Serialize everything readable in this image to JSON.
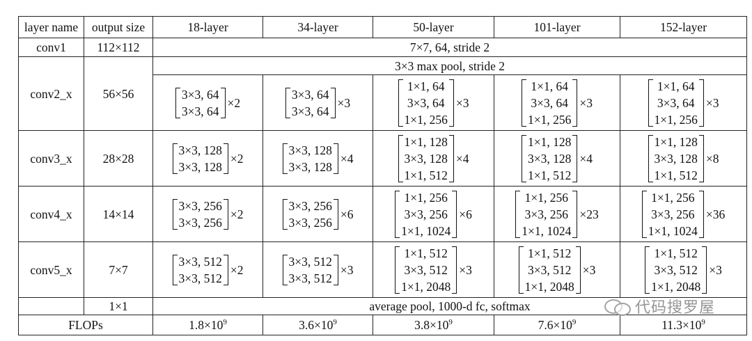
{
  "headers": [
    "layer name",
    "output size",
    "18-layer",
    "34-layer",
    "50-layer",
    "101-layer",
    "152-layer"
  ],
  "conv1": {
    "name": "conv1",
    "size": "112×112",
    "spec": "7×7, 64, stride 2"
  },
  "pool": "3×3 max pool, stride 2",
  "blocks": [
    {
      "name": "conv2_x",
      "size": "56×56",
      "cols": [
        {
          "lines": [
            "3×3, 64",
            "3×3, 64"
          ],
          "mult": "×2"
        },
        {
          "lines": [
            "3×3, 64",
            "3×3, 64"
          ],
          "mult": "×3"
        },
        {
          "lines": [
            "1×1, 64",
            "3×3, 64",
            "1×1, 256"
          ],
          "mult": "×3"
        },
        {
          "lines": [
            "1×1, 64",
            "3×3, 64",
            "1×1, 256"
          ],
          "mult": "×3"
        },
        {
          "lines": [
            "1×1, 64",
            "3×3, 64",
            "1×1, 256"
          ],
          "mult": "×3"
        }
      ]
    },
    {
      "name": "conv3_x",
      "size": "28×28",
      "cols": [
        {
          "lines": [
            "3×3, 128",
            "3×3, 128"
          ],
          "mult": "×2"
        },
        {
          "lines": [
            "3×3, 128",
            "3×3, 128"
          ],
          "mult": "×4"
        },
        {
          "lines": [
            "1×1, 128",
            "3×3, 128",
            "1×1, 512"
          ],
          "mult": "×4"
        },
        {
          "lines": [
            "1×1, 128",
            "3×3, 128",
            "1×1, 512"
          ],
          "mult": "×4"
        },
        {
          "lines": [
            "1×1, 128",
            "3×3, 128",
            "1×1, 512"
          ],
          "mult": "×8"
        }
      ]
    },
    {
      "name": "conv4_x",
      "size": "14×14",
      "cols": [
        {
          "lines": [
            "3×3, 256",
            "3×3, 256"
          ],
          "mult": "×2"
        },
        {
          "lines": [
            "3×3, 256",
            "3×3, 256"
          ],
          "mult": "×6"
        },
        {
          "lines": [
            "1×1, 256",
            "3×3, 256",
            "1×1, 1024"
          ],
          "mult": "×6"
        },
        {
          "lines": [
            "1×1, 256",
            "3×3, 256",
            "1×1, 1024"
          ],
          "mult": "×23"
        },
        {
          "lines": [
            "1×1, 256",
            "3×3, 256",
            "1×1, 1024"
          ],
          "mult": "×36"
        }
      ]
    },
    {
      "name": "conv5_x",
      "size": "7×7",
      "cols": [
        {
          "lines": [
            "3×3, 512",
            "3×3, 512"
          ],
          "mult": "×2"
        },
        {
          "lines": [
            "3×3, 512",
            "3×3, 512"
          ],
          "mult": "×3"
        },
        {
          "lines": [
            "1×1, 512",
            "3×3, 512",
            "1×1, 2048"
          ],
          "mult": "×3"
        },
        {
          "lines": [
            "1×1, 512",
            "3×3, 512",
            "1×1, 2048"
          ],
          "mult": "×3"
        },
        {
          "lines": [
            "1×1, 512",
            "3×3, 512",
            "1×1, 2048"
          ],
          "mult": "×3"
        }
      ]
    }
  ],
  "avg": {
    "size": "1×1",
    "spec": "average pool, 1000-d fc, softmax"
  },
  "flops": {
    "label": "FLOPs",
    "values": [
      {
        "base": "1.8×10",
        "exp": "9"
      },
      {
        "base": "3.6×10",
        "exp": "9"
      },
      {
        "base": "3.8×10",
        "exp": "9"
      },
      {
        "base": "7.6×10",
        "exp": "9"
      },
      {
        "base": "11.3×10",
        "exp": "9"
      }
    ]
  },
  "watermark": "代码搜罗屋"
}
